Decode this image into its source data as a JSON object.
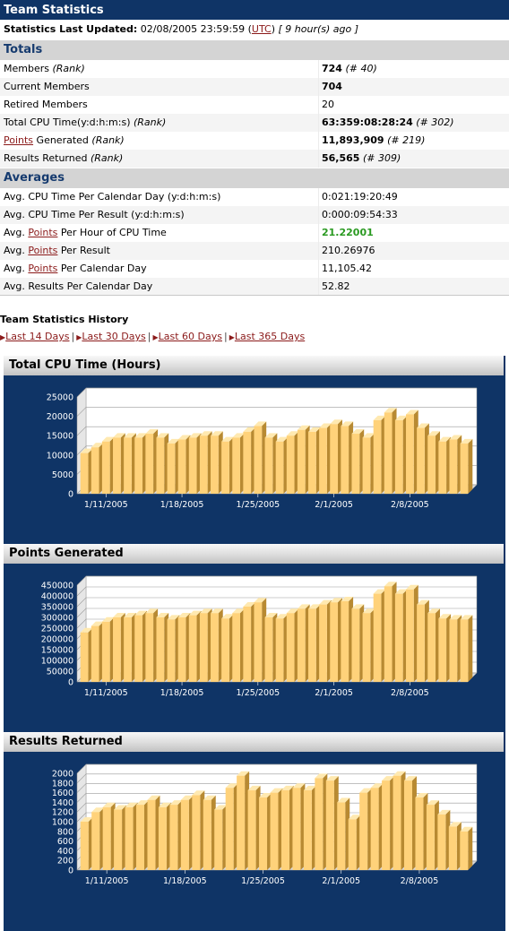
{
  "title": "Team Statistics",
  "updated": {
    "label": "Statistics Last Updated:",
    "date": "02/08/2005 23:59:59",
    "tz": "UTC",
    "ago": "[ 9 hour(s) ago ]"
  },
  "totals": {
    "heading": "Totals",
    "members_label": "Members",
    "members_rank_label": "(Rank)",
    "members_value": "724",
    "members_rank": "(# 40)",
    "current_label": "Current Members",
    "current_value": "704",
    "retired_label": "Retired Members",
    "retired_value": "20",
    "cpu_label": "Total CPU Time(y:d:h:m:s)",
    "cpu_rank_label": "(Rank)",
    "cpu_value": "63:359:08:28:24",
    "cpu_rank": "(# 302)",
    "points_link": "Points",
    "points_label": "Generated",
    "points_rank_label": "(Rank)",
    "points_value": "11,893,909",
    "points_rank": "(# 219)",
    "results_label": "Results Returned",
    "results_rank_label": "(Rank)",
    "results_value": "56,565",
    "results_rank": "(# 309)"
  },
  "averages": {
    "heading": "Averages",
    "cpu_day_label": "Avg. CPU Time Per Calendar Day (y:d:h:m:s)",
    "cpu_day_value": "0:021:19:20:49",
    "cpu_result_label": "Avg. CPU Time Per Result (y:d:h:m:s)",
    "cpu_result_value": "0:000:09:54:33",
    "pph_prefix": "Avg.",
    "pph_link": "Points",
    "pph_suffix": "Per Hour of CPU Time",
    "pph_value": "21.22001",
    "ppr_prefix": "Avg.",
    "ppr_link": "Points",
    "ppr_suffix": "Per Result",
    "ppr_value": "210.26976",
    "ppd_prefix": "Avg.",
    "ppd_link": "Points",
    "ppd_suffix": "Per Calendar Day",
    "ppd_value": "11,105.42",
    "rpd_label": "Avg. Results Per Calendar Day",
    "rpd_value": "52.82"
  },
  "history": {
    "title": "Team Statistics History",
    "links": [
      "Last 14 Days",
      "Last 30 Days",
      "Last 60 Days",
      "Last 365 Days"
    ]
  },
  "colors": {
    "panel": "#0f3466",
    "bar_front": "#ffd27a",
    "bar_side": "#b88a32",
    "bar_top": "#ffe9b0",
    "axis_text": "#ffffff",
    "link": "#8b1a1a",
    "green": "#2a9a21"
  },
  "chart_data": [
    {
      "type": "bar",
      "title": "Total CPU Time (Hours)",
      "x_tick_labels": [
        "1/11/2005",
        "1/18/2005",
        "1/25/2005",
        "2/1/2005",
        "2/8/2005"
      ],
      "x_tick_index": [
        2,
        9,
        16,
        23,
        30
      ],
      "ylim": [
        0,
        25000
      ],
      "y_ticks": [
        0,
        5000,
        10000,
        15000,
        20000,
        25000
      ],
      "grid": true,
      "values": [
        10500,
        12000,
        13500,
        14500,
        14500,
        14500,
        15500,
        14500,
        13000,
        14000,
        14500,
        15000,
        15000,
        13500,
        14500,
        16000,
        17500,
        14500,
        13500,
        15000,
        16500,
        16000,
        17000,
        18000,
        17500,
        15500,
        14500,
        19000,
        21000,
        19000,
        20500,
        17000,
        15000,
        13500,
        14000,
        13000
      ]
    },
    {
      "type": "bar",
      "title": "Points Generated",
      "x_tick_labels": [
        "1/11/2005",
        "1/18/2005",
        "1/25/2005",
        "2/1/2005",
        "2/8/2005"
      ],
      "x_tick_index": [
        2,
        9,
        16,
        23,
        30
      ],
      "ylim": [
        0,
        450000
      ],
      "y_ticks": [
        0,
        50000,
        100000,
        150000,
        200000,
        250000,
        300000,
        350000,
        400000,
        450000
      ],
      "grid": true,
      "values": [
        230000,
        260000,
        280000,
        300000,
        300000,
        310000,
        320000,
        300000,
        290000,
        300000,
        310000,
        320000,
        320000,
        295000,
        320000,
        350000,
        370000,
        300000,
        295000,
        320000,
        340000,
        340000,
        360000,
        370000,
        375000,
        340000,
        320000,
        410000,
        445000,
        410000,
        430000,
        360000,
        320000,
        295000,
        290000,
        290000
      ]
    },
    {
      "type": "bar",
      "title": "Results Returned",
      "x_tick_labels": [
        "1/11/2005",
        "1/18/2005",
        "1/25/2005",
        "2/1/2005",
        "2/8/2005"
      ],
      "x_tick_index": [
        2,
        9,
        16,
        23,
        30
      ],
      "ylim": [
        0,
        2000
      ],
      "y_ticks": [
        0,
        200,
        400,
        600,
        800,
        1000,
        1200,
        1400,
        1600,
        1800,
        2000
      ],
      "grid": true,
      "values": [
        1000,
        1200,
        1300,
        1250,
        1300,
        1350,
        1450,
        1300,
        1350,
        1450,
        1550,
        1450,
        1250,
        1700,
        1950,
        1650,
        1500,
        1600,
        1650,
        1700,
        1650,
        1900,
        1850,
        1400,
        1050,
        1600,
        1700,
        1850,
        1950,
        1850,
        1500,
        1350,
        1150,
        900,
        800
      ]
    }
  ]
}
